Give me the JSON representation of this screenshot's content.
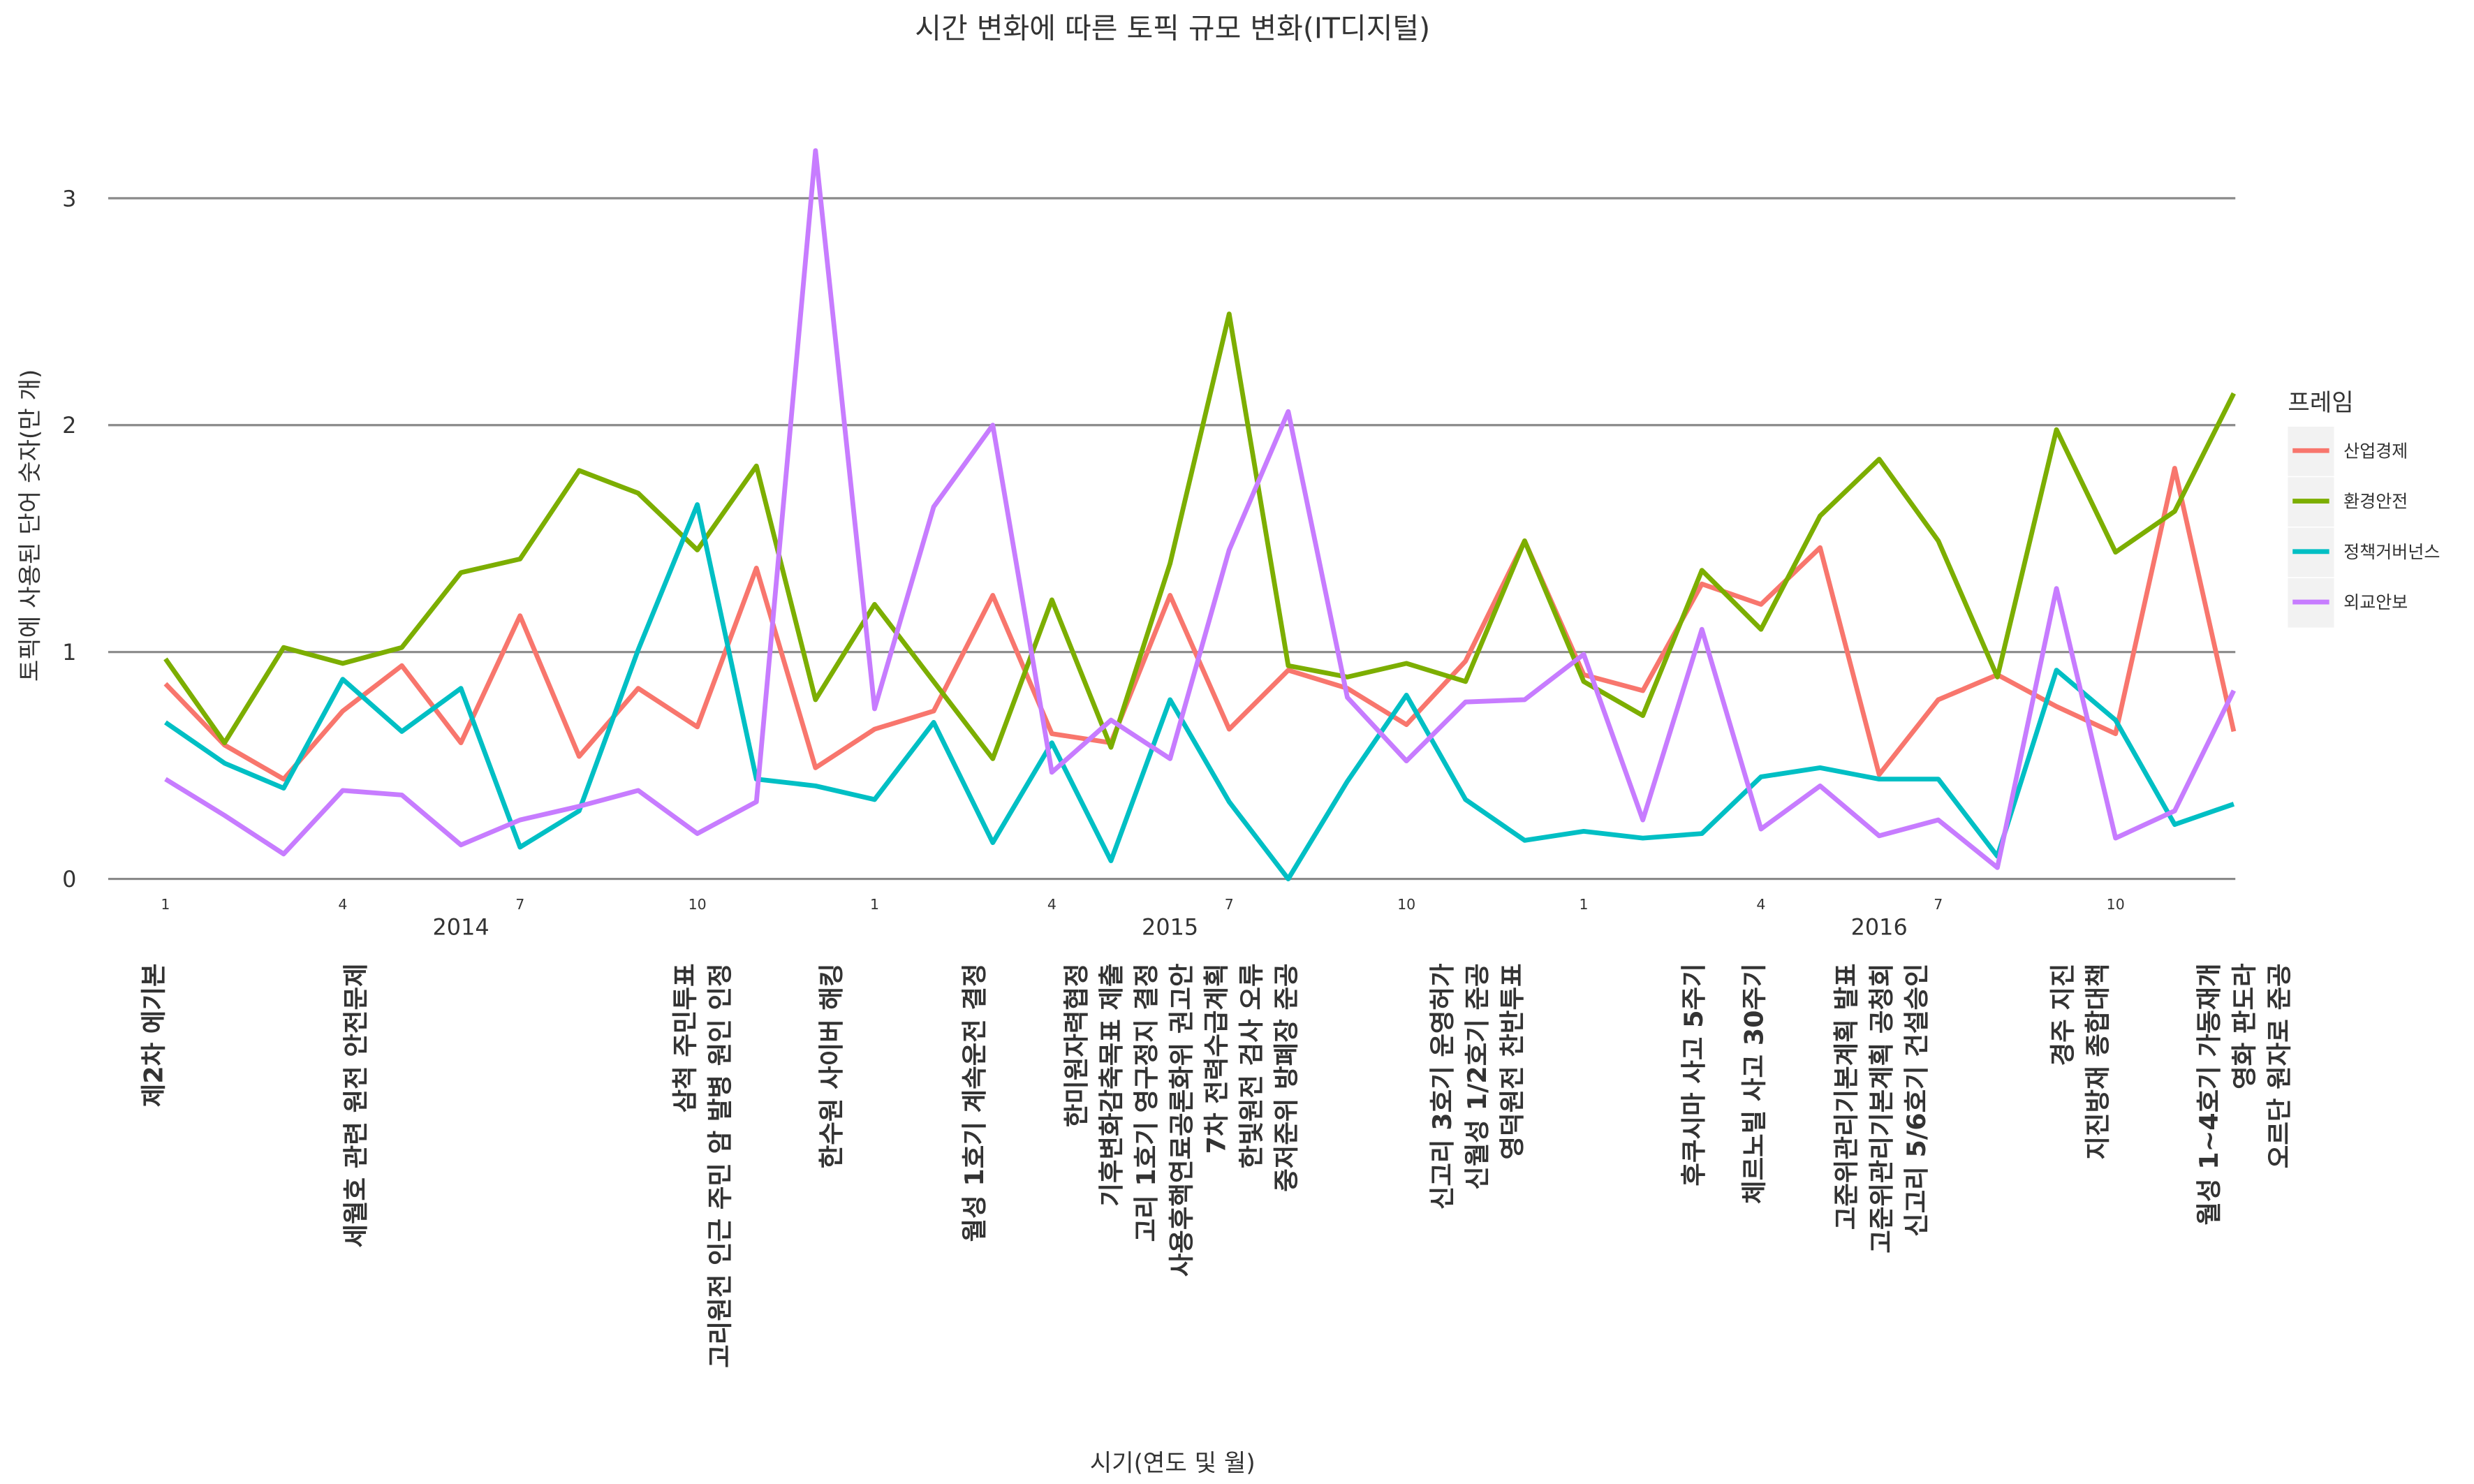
{
  "chart_data": {
    "type": "line",
    "title": "시간 변화에 따른 토픽 규모 변화(IT디지털)",
    "x_label": "시기(연도 및 월)",
    "y_label": "토픽에 사용된 단어 숫자(만 개)",
    "legend_title": "프레임",
    "categories": [
      "1",
      null,
      null,
      "4",
      null,
      null,
      "7",
      null,
      null,
      "10",
      null,
      null,
      "1",
      null,
      null,
      "4",
      null,
      null,
      "7",
      null,
      null,
      "10",
      null,
      null,
      "1",
      null,
      null,
      "4",
      null,
      null,
      "7",
      null,
      null,
      "10",
      null,
      null
    ],
    "years": [
      "2014",
      "2015",
      "2016"
    ],
    "series": [
      {
        "name": "산업경제",
        "color": "#F8766D",
        "values": [
          0.86,
          0.59,
          0.44,
          0.74,
          0.94,
          0.6,
          1.16,
          0.54,
          0.84,
          0.67,
          1.37,
          0.49,
          0.66,
          0.74,
          1.25,
          0.64,
          0.6,
          1.25,
          0.66,
          0.92,
          0.84,
          0.68,
          0.96,
          1.49,
          0.9,
          0.83,
          1.3,
          1.21,
          1.46,
          0.46,
          0.79,
          0.9,
          0.76,
          0.64,
          1.81,
          0.65
        ]
      },
      {
        "name": "환경안전",
        "color": "#7CAE00",
        "values": [
          0.97,
          0.6,
          1.02,
          0.95,
          1.02,
          1.35,
          1.41,
          1.8,
          1.7,
          1.45,
          1.82,
          0.79,
          1.21,
          0.87,
          0.53,
          1.23,
          0.58,
          1.39,
          2.49,
          0.94,
          0.89,
          0.95,
          0.87,
          1.49,
          0.87,
          0.72,
          1.36,
          1.1,
          1.6,
          1.85,
          1.49,
          0.89,
          1.98,
          1.44,
          1.62,
          2.14
        ]
      },
      {
        "name": "정책거버넌스",
        "color": "#00BFC4",
        "values": [
          0.69,
          0.51,
          0.4,
          0.88,
          0.65,
          0.84,
          0.14,
          0.3,
          1.01,
          1.65,
          0.44,
          0.41,
          0.35,
          0.69,
          0.16,
          0.6,
          0.08,
          0.79,
          0.34,
          0.0,
          0.43,
          0.81,
          0.35,
          0.17,
          0.21,
          0.18,
          0.2,
          0.45,
          0.49,
          0.44,
          0.44,
          0.1,
          0.92,
          0.7,
          0.24,
          0.33
        ]
      },
      {
        "name": "외교안보",
        "color": "#C77CFF",
        "values": [
          0.44,
          0.28,
          0.11,
          0.39,
          0.37,
          0.15,
          0.26,
          0.32,
          0.39,
          0.2,
          0.34,
          3.21,
          0.75,
          1.64,
          2.0,
          0.47,
          0.7,
          0.53,
          1.45,
          2.06,
          0.8,
          0.52,
          0.78,
          0.79,
          0.99,
          0.26,
          1.1,
          0.22,
          0.41,
          0.19,
          0.26,
          0.05,
          1.28,
          0.18,
          0.3,
          0.83
        ]
      }
    ],
    "ylim": [
      0,
      3.3
    ],
    "yticks": [
      0,
      1,
      2,
      3
    ],
    "grid": true,
    "legend": "right",
    "annotations": [
      [
        "제2차 에기본"
      ],
      [
        "세월호 관련 원전 안전문제"
      ],
      [
        "삼척 주민투표",
        "고리원전 인근 주민 암 발병 원인 인정"
      ],
      [
        "한수원 사이버 해킹"
      ],
      [
        "월성 1호기 계속운전 결정"
      ],
      [
        "한미원자력협정",
        "기후변화감축목표 제출",
        "고리 1호기 영구정지 결정",
        "사용후핵연료공론화위 권고안",
        "7차 전력수급계획",
        "한빛원전 검사 오류",
        "중저준위 방폐장 준공"
      ],
      [
        "신고리 3호기 운영허가",
        "신월성 1/2호기 준공",
        "영덕원전 찬반투표"
      ],
      [
        "후쿠시마 사고 5주기"
      ],
      [
        "체르노빌 사고 30주기"
      ],
      [
        "고준위관리기본계획 발표",
        "고준위관리기본계획 공청회",
        "신고리 5/6호기 건설승인"
      ],
      [
        "경주 지진",
        "지진방재 종합대책"
      ],
      [
        "월성 1~4호기 가동재개",
        "영화 판도라",
        "오르단 원자로 준공"
      ]
    ]
  }
}
